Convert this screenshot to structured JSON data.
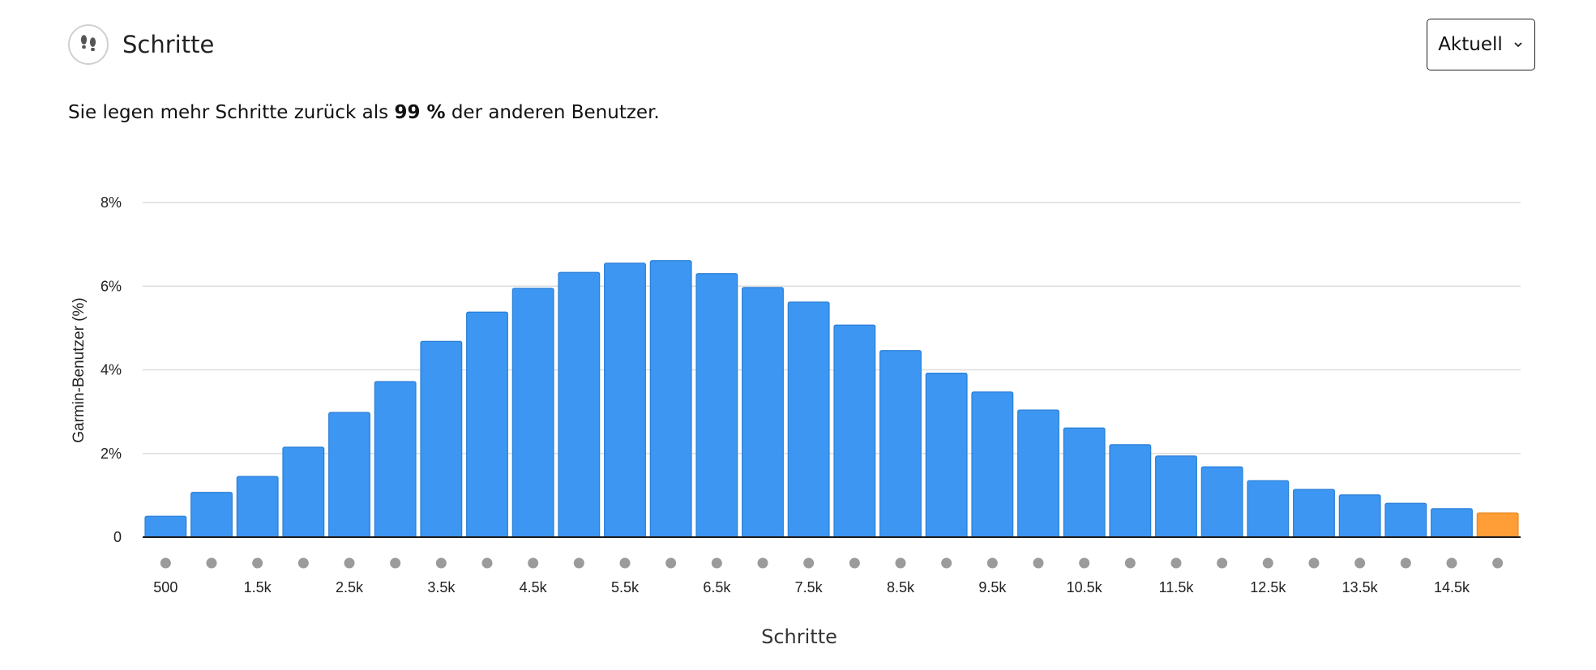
{
  "header": {
    "title": "Schritte",
    "icon": "footprints-icon",
    "period_select": {
      "selected": "Aktuell"
    }
  },
  "summary": {
    "before": "Sie legen mehr Schritte zurück als",
    "value": "99 %",
    "after": "der anderen Benutzer."
  },
  "colors": {
    "bar": "#3c96f2",
    "highlight": "#ff9d36",
    "grid": "#dedede",
    "axis": "#1a1a1a",
    "dot": "#9b9b9b"
  },
  "chart_data": {
    "type": "bar",
    "xlabel": "Schritte",
    "ylabel": "Garmin-Benutzer (%)",
    "ylim": [
      0,
      8
    ],
    "yticks": [
      "0",
      "2%",
      "4%",
      "6%",
      "8%"
    ],
    "grid": true,
    "categories": [
      500,
      1000,
      1500,
      2000,
      2500,
      3000,
      3500,
      4000,
      4500,
      5000,
      5500,
      6000,
      6500,
      7000,
      7500,
      8000,
      8500,
      9000,
      9500,
      10000,
      10500,
      11000,
      11500,
      12000,
      12500,
      13000,
      13500,
      14000,
      14500,
      15000
    ],
    "xtick_labels": [
      "500",
      "",
      "1.5k",
      "",
      "2.5k",
      "",
      "3.5k",
      "",
      "4.5k",
      "",
      "5.5k",
      "",
      "6.5k",
      "",
      "7.5k",
      "",
      "8.5k",
      "",
      "9.5k",
      "",
      "10.5k",
      "",
      "11.5k",
      "",
      "12.5k",
      "",
      "13.5k",
      "",
      "14.5k",
      ""
    ],
    "values": [
      0.5,
      1.07,
      1.45,
      2.15,
      2.98,
      3.72,
      4.68,
      5.38,
      5.95,
      6.33,
      6.55,
      6.61,
      6.3,
      5.97,
      5.62,
      5.07,
      4.46,
      3.92,
      3.47,
      3.04,
      2.61,
      2.21,
      1.94,
      1.68,
      1.35,
      1.14,
      1.01,
      0.81,
      0.68,
      0.58
    ],
    "highlight_index": 29
  }
}
